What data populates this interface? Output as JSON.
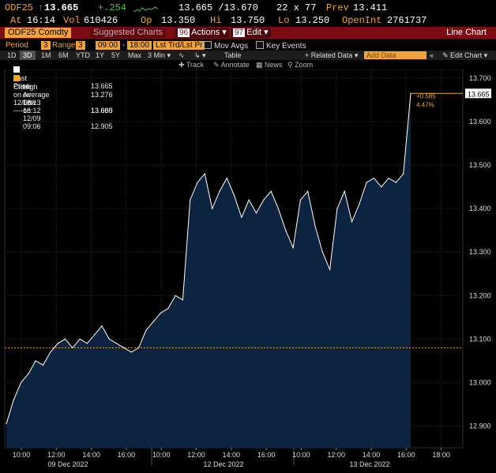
{
  "ticker": {
    "symbol": "ODF25",
    "last": "13.665",
    "change": "+.254",
    "bid_ask": "13.665 /13.670",
    "size": "22 x 77",
    "prev_label": "Prev",
    "prev": "13.411",
    "at_label": "At",
    "time": "16:14",
    "vol_label": "Vol",
    "vol": "610426",
    "op_label": "Op",
    "op": "13.350",
    "hi_label": "Hi",
    "hi": "13.750",
    "lo_label": "Lo",
    "lo": "13.250",
    "oi_label": "OpenInt",
    "oi": "2761737"
  },
  "titlebar": {
    "security": "ODF25 Comdty",
    "suggested": "Suggested Charts",
    "actions_num": "96",
    "actions": "Actions",
    "edit_num": "97",
    "edit": "Edit",
    "chart_type": "Line Chart"
  },
  "settings": {
    "period_label": "Period",
    "period_val": "3",
    "range_label": "Range",
    "range_val": "3",
    "time_from": "09:00",
    "time_to": "18:00",
    "price_field": "Lst Trd/Lst Pr",
    "mov_avgs": "Mov Avgs",
    "key_events": "Key Events"
  },
  "ranges": [
    "1D",
    "3D",
    "1M",
    "6M",
    "YTD",
    "1Y",
    "5Y",
    "Max"
  ],
  "selected_range": "3D",
  "interval": "3 Min",
  "toolbar": {
    "table": "Table",
    "related_data": "Related Data",
    "add_data_placeholder": "Add Data",
    "edit_chart": "Edit Chart",
    "track": "Track",
    "annotate": "Annotate",
    "news": "News",
    "zoom": "Zoom"
  },
  "legend": [
    {
      "label": "Last Price",
      "value": "13.665"
    },
    {
      "label": "Close on 12/08 ----",
      "value": "13.080"
    },
    {
      "label": "High on 12/13 16:12",
      "value": "13.665"
    },
    {
      "label": "Average",
      "value": "13.276"
    },
    {
      "label": "Low on 12/09 09:06",
      "value": "12.905"
    }
  ],
  "annotations": {
    "change_abs": "+0.585",
    "change_pct": "4.47%",
    "last_tag": "13.665"
  },
  "colors": {
    "amber": "#f5a623",
    "line": "#ffffff",
    "area": "#0d2440",
    "title_bar": "#7d0b12",
    "up": "#3fd13f"
  },
  "chart_data": {
    "type": "area",
    "y_ticks": [
      "13.700",
      "13.600",
      "13.500",
      "13.400",
      "13.300",
      "13.200",
      "13.100",
      "13.000",
      "12.900"
    ],
    "ylim": [
      12.85,
      13.72
    ],
    "x_ticks": [
      "10:00",
      "12:00",
      "14:00",
      "16:00",
      "10:00",
      "12:00",
      "14:00",
      "16:00",
      "10:00",
      "12:00",
      "14:00",
      "16:00",
      "18:00"
    ],
    "day_labels": [
      "09 Dec 2022",
      "12 Dec 2022",
      "13 Dec 2022"
    ],
    "reference_close": 13.08,
    "series": [
      {
        "values": [
          12.905,
          12.96,
          13.0,
          13.02,
          13.05,
          13.04,
          13.07,
          13.09,
          13.1,
          13.08,
          13.1,
          13.09,
          13.11,
          13.13,
          13.1,
          13.09,
          13.08,
          13.07,
          13.08,
          13.12,
          13.14,
          13.16,
          13.17,
          13.2,
          13.19,
          13.42,
          13.46,
          13.48,
          13.4,
          13.44,
          13.47,
          13.43,
          13.38,
          13.42,
          13.39,
          13.42,
          13.44,
          13.4,
          13.35,
          13.31,
          13.42,
          13.44,
          13.36,
          13.3,
          13.26,
          13.4,
          13.44,
          13.37,
          13.41,
          13.46,
          13.47,
          13.45,
          13.47,
          13.46,
          13.48,
          13.665
        ]
      }
    ]
  }
}
